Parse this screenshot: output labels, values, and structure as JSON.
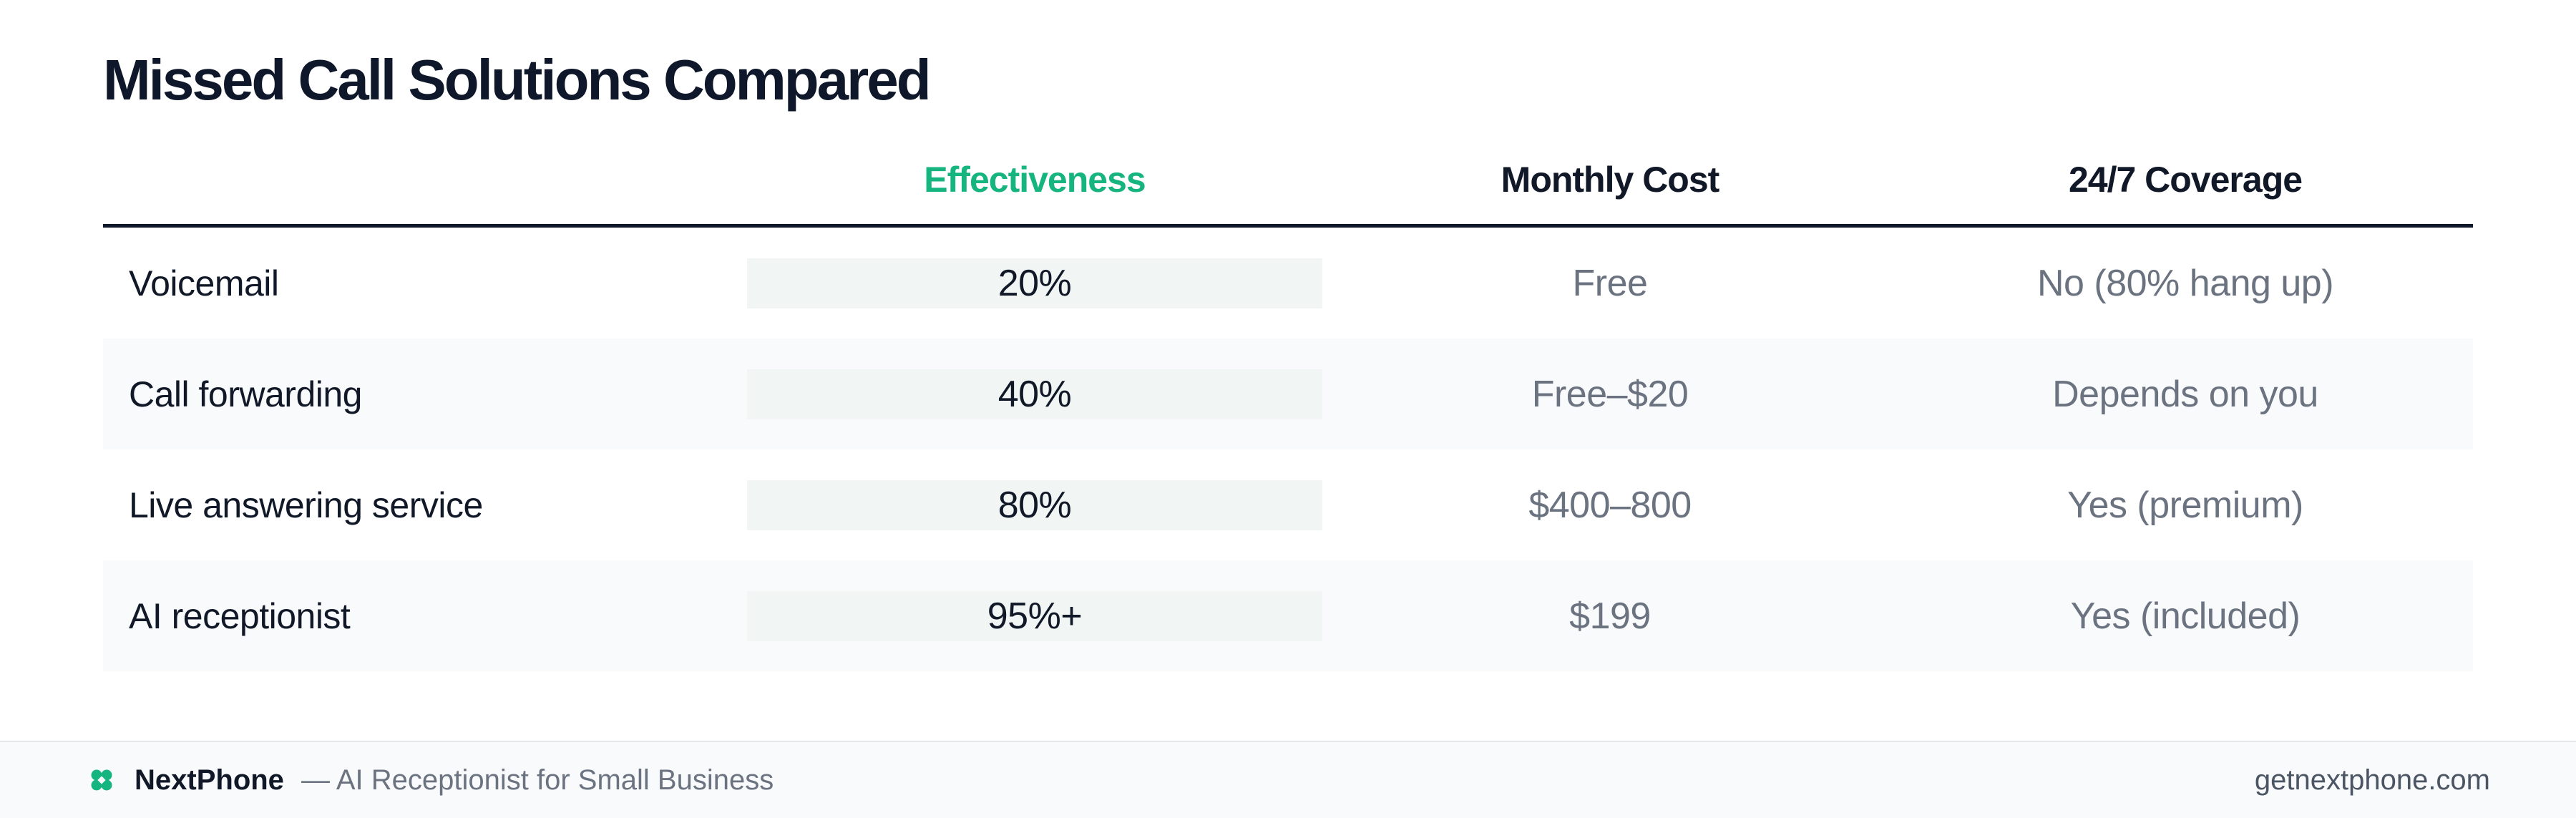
{
  "title": "Missed Call Solutions Compared",
  "colors": {
    "accent": "#16b47e",
    "text": "#111827",
    "muted": "#6b7280",
    "row_alt": "#f8fafb",
    "effectiveness_bg": "#f1f6f4"
  },
  "table": {
    "headers": {
      "name": "",
      "effectiveness": "Effectiveness",
      "cost": "Monthly Cost",
      "coverage": "24/7 Coverage"
    },
    "rows": [
      {
        "name": "Voicemail",
        "effectiveness": "20%",
        "cost": "Free",
        "coverage": "No (80% hang up)"
      },
      {
        "name": "Call forwarding",
        "effectiveness": "40%",
        "cost": "Free–$20",
        "coverage": "Depends on you"
      },
      {
        "name": "Live answering service",
        "effectiveness": "80%",
        "cost": "$400–800",
        "coverage": "Yes (premium)"
      },
      {
        "name": "AI receptionist",
        "effectiveness": "95%+",
        "cost": "$199",
        "coverage": "Yes (included)"
      }
    ]
  },
  "footer": {
    "brand_icon": "clover-icon",
    "brand_name": "NextPhone",
    "tagline": "— AI Receptionist for Small Business",
    "site": "getnextphone.com"
  }
}
